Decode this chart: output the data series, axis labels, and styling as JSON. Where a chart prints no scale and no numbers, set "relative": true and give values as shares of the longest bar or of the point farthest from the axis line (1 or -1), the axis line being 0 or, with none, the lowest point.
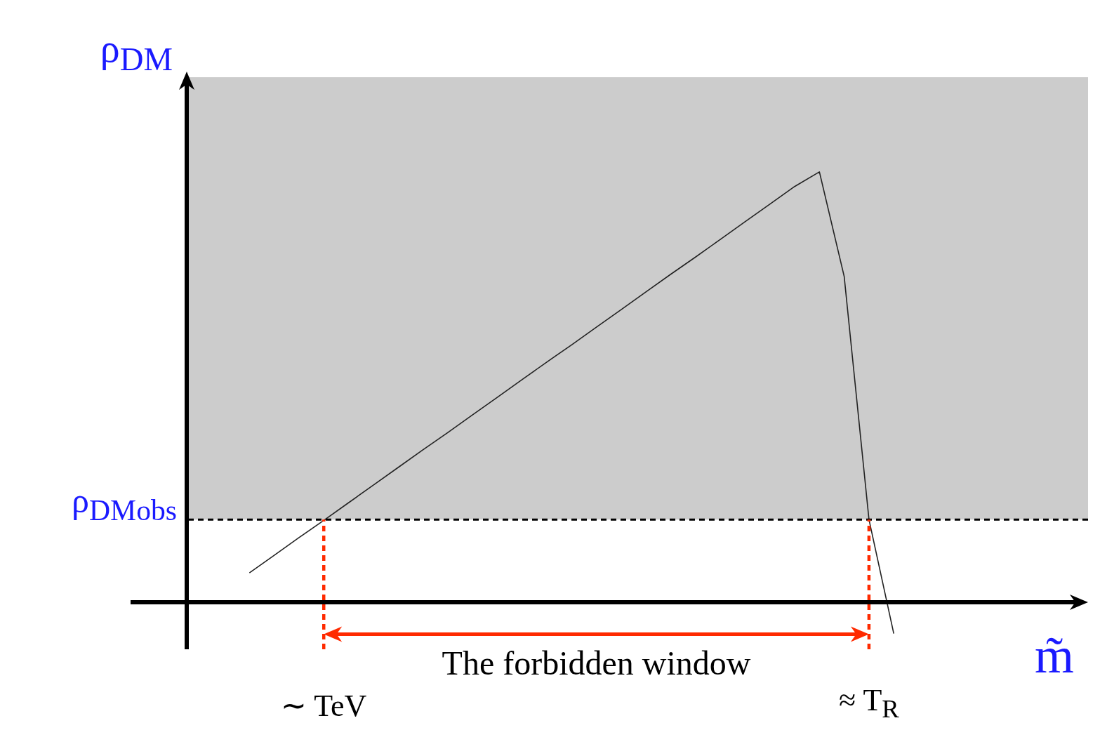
{
  "chart_data": {
    "type": "line",
    "relative": true,
    "xlabel": "m̃",
    "ylabel": "ρ$_{DM}$",
    "categories": [
      null,
      null,
      null,
      "∼ TeV",
      null,
      null,
      null,
      null,
      null,
      null,
      null,
      null,
      null,
      null,
      null,
      null,
      null,
      null,
      null,
      null,
      null,
      null,
      null,
      null,
      null,
      "≈ T$_{R}$",
      null
    ],
    "series": [
      {
        "color": "#222222",
        "values": [
          0.068,
          0.109,
          0.15,
          0.19,
          0.231,
          0.272,
          0.313,
          0.354,
          0.394,
          0.435,
          0.476,
          0.517,
          0.558,
          0.598,
          0.639,
          0.68,
          0.721,
          0.762,
          0.802,
          0.843,
          0.884,
          0.925,
          0.966,
          1.0,
          0.757,
          0.192,
          -0.073
        ]
      }
    ],
    "bands": [
      {
        "axis": "y",
        "from": 0.192,
        "to": 1.22,
        "color": "#cccccc"
      }
    ],
    "ref_lines": [
      {
        "axis": "y",
        "value": 0.192,
        "label": "ρ$_{DM}$$_{obs}$",
        "color": "#000000",
        "line_style": "dashed"
      },
      {
        "axis": "x",
        "value": "∼ TeV",
        "color": "#ff2a00",
        "line_style": "dashed"
      },
      {
        "axis": "x",
        "value": "≈ T$_{R}$",
        "color": "#ff2a00",
        "line_style": "dashed"
      }
    ],
    "annotations": [
      "The forbidden window"
    ],
    "marker": "none",
    "line_style": "solid"
  }
}
